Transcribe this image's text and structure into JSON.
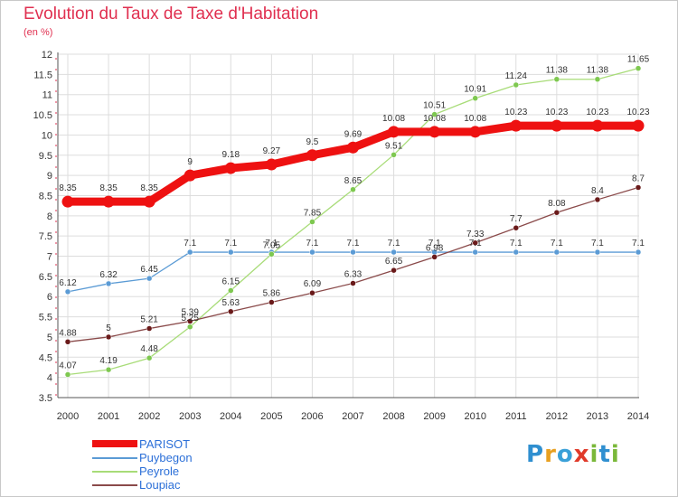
{
  "title": "Evolution du Taux de Taxe d'Habitation",
  "unit_label": "(en %)",
  "logo": {
    "letters": [
      {
        "ch": "P",
        "color": "#2f8fd0"
      },
      {
        "ch": "r",
        "color": "#e8a020"
      },
      {
        "ch": "o",
        "color": "#3aa0d8"
      },
      {
        "ch": "x",
        "color": "#e03a2a"
      },
      {
        "ch": "i",
        "color": "#7ab83a"
      },
      {
        "ch": "t",
        "color": "#2f8fd0"
      },
      {
        "ch": "i",
        "color": "#7ab83a"
      }
    ]
  },
  "chart_data": {
    "type": "line",
    "title": "Evolution du Taux de Taxe d'Habitation",
    "ylabel": "(en %)",
    "xlabel": "",
    "ylim": [
      3.5,
      12
    ],
    "y_ticks": [
      "3.5",
      "4",
      "4.5",
      "5",
      "5.5",
      "6",
      "6.5",
      "7",
      "7.5",
      "8",
      "8.5",
      "9",
      "9.5",
      "10",
      "10.5",
      "11",
      "11.5",
      "12"
    ],
    "grid": true,
    "legend_position": "bottom-left",
    "categories": [
      "2000",
      "2001",
      "2002",
      "2003",
      "2004",
      "2005",
      "2006",
      "2007",
      "2008",
      "2009",
      "2010",
      "2011",
      "2012",
      "2013",
      "2014"
    ],
    "series": [
      {
        "name": "PARISOT",
        "color": "#ee1111",
        "point_color": "#ee1111",
        "style": "thick",
        "values": [
          8.35,
          8.35,
          8.35,
          9,
          9.18,
          9.27,
          9.5,
          9.69,
          10.08,
          10.08,
          10.08,
          10.23,
          10.23,
          10.23,
          10.23
        ],
        "labels": [
          "8.35",
          "8.35",
          "8.35",
          "9",
          "9.18",
          "9.27",
          "9.5",
          "9.69",
          "10.08",
          "10.08",
          "10.08",
          "10.23",
          "10.23",
          "10.23",
          "10.23"
        ]
      },
      {
        "name": "Puybegon",
        "color": "#5b9bd5",
        "point_color": "#5b9bd5",
        "style": "thin",
        "values": [
          6.12,
          6.32,
          6.45,
          7.1,
          7.1,
          7.1,
          7.1,
          7.1,
          7.1,
          7.1,
          7.1,
          7.1,
          7.1,
          7.1,
          7.1
        ],
        "labels": [
          "6.12",
          "6.32",
          "6.45",
          "7.1",
          "7.1",
          "7.1",
          "7.1",
          "7.1",
          "7.1",
          "7.1",
          "7.1",
          "7.1",
          "7.1",
          "7.1",
          "7.1"
        ]
      },
      {
        "name": "Peyrole",
        "color": "#a8dc78",
        "point_color": "#7ec850",
        "style": "thin",
        "values": [
          4.07,
          4.19,
          4.48,
          5.25,
          6.15,
          7.05,
          7.85,
          8.65,
          9.51,
          10.51,
          10.91,
          11.24,
          11.38,
          11.38,
          11.65
        ],
        "labels": [
          "4.07",
          "4.19",
          "4.48",
          "5.25",
          "6.15",
          "7.05",
          "7.85",
          "8.65",
          "9.51",
          "10.51",
          "10.91",
          "11.24",
          "11.38",
          "11.38",
          "11.65"
        ]
      },
      {
        "name": "Loupiac",
        "color": "#8a4a4a",
        "point_color": "#6a1a1a",
        "style": "thin",
        "values": [
          4.88,
          5,
          5.21,
          5.39,
          5.63,
          5.86,
          6.09,
          6.33,
          6.65,
          6.98,
          7.33,
          7.7,
          8.08,
          8.4,
          8.7
        ],
        "labels": [
          "4.88",
          "5",
          "5.21",
          "5.39",
          "5.63",
          "5.86",
          "6.09",
          "6.33",
          "6.65",
          "6.98",
          "7.33",
          "7.7",
          "8.08",
          "8.4",
          "8.7"
        ]
      }
    ]
  }
}
